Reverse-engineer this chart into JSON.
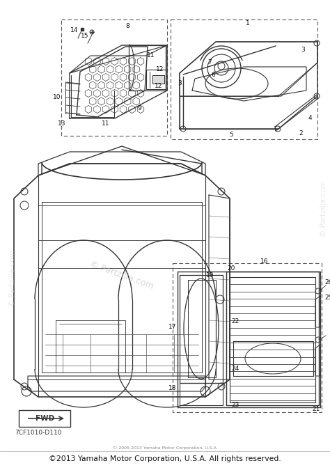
{
  "footer_main": "©2013 Yamaha Motor Corporation, U.S.A. All rights reserved.",
  "footer_small": "© 2005-2013 Yamaha Motor Corporation, U.S.A.",
  "part_code": "7CF1010-D110",
  "fwd_label": "FWD",
  "watermark1": "© Partzilla.com",
  "watermark2": "© Partzilla.com",
  "watermark3": "© Partzilla.com",
  "bg_color": "#ffffff",
  "lc": "#333333",
  "lc_light": "#666666",
  "label_color": "#111111"
}
